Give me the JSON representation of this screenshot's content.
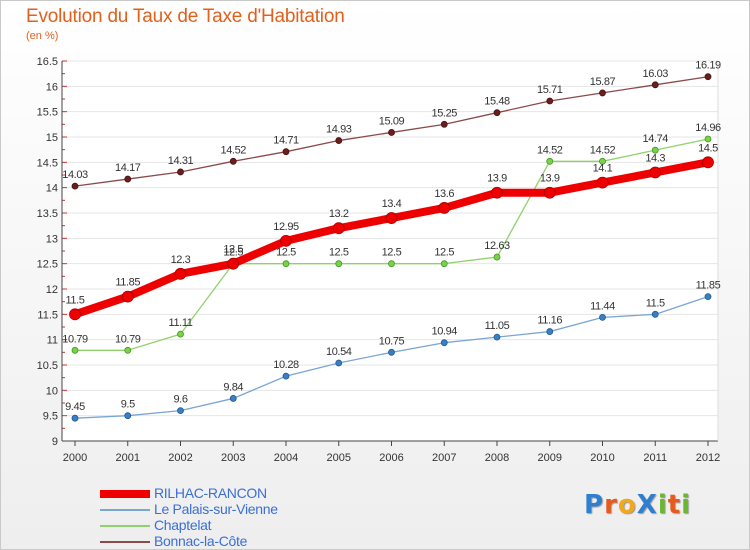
{
  "title": "Evolution du Taux de Taxe d'Habitation",
  "subtitle": "(en %)",
  "logo": {
    "text": "ProXiti",
    "letters": [
      {
        "ch": "P",
        "color": "#2f7fd1"
      },
      {
        "ch": "r",
        "color": "#e85a1c"
      },
      {
        "ch": "o",
        "color": "#f0a81c"
      },
      {
        "ch": "X",
        "color": "#2f7fd1"
      },
      {
        "ch": "i",
        "color": "#6ab82e"
      },
      {
        "ch": "t",
        "color": "#e85a1c"
      },
      {
        "ch": "i",
        "color": "#6ab82e"
      }
    ]
  },
  "chart_data": {
    "type": "line",
    "title": "Evolution du Taux de Taxe d'Habitation",
    "subtitle": "(en %)",
    "xlabel": "",
    "ylabel": "",
    "x": [
      "2000",
      "2001",
      "2002",
      "2003",
      "2004",
      "2005",
      "2006",
      "2007",
      "2008",
      "2009",
      "2010",
      "2011",
      "2012"
    ],
    "ylim": [
      9,
      16.5
    ],
    "yticks": [
      "9",
      "9.5",
      "10",
      "10.5",
      "11",
      "11.5",
      "12",
      "12.5",
      "13",
      "13.5",
      "14",
      "14.5",
      "15",
      "15.5",
      "16",
      "16.5"
    ],
    "grid": "horizontal",
    "legend_position": "bottom-left",
    "series": [
      {
        "name": "RILHAC-RANCON",
        "color": "#ee0000",
        "values": [
          11.5,
          11.85,
          12.3,
          12.5,
          12.95,
          13.2,
          13.4,
          13.6,
          13.9,
          13.9,
          14.1,
          14.3,
          14.5
        ],
        "labels": [
          "11.5",
          "11.85",
          "12.3",
          "12.5",
          "12.95",
          "13.2",
          "13.4",
          "13.6",
          "13.9",
          "13.9",
          "14.1",
          "14.3",
          "14.5"
        ]
      },
      {
        "name": "Le Palais-sur-Vienne",
        "color": "#7aa6d3",
        "values": [
          9.45,
          9.5,
          9.6,
          9.84,
          10.28,
          10.54,
          10.75,
          10.94,
          11.05,
          11.16,
          11.44,
          11.5,
          11.85
        ],
        "labels": [
          "9.45",
          "9.5",
          "9.6",
          "9.84",
          "10.28",
          "10.54",
          "10.75",
          "10.94",
          "11.05",
          "11.16",
          "11.44",
          "11.5",
          "11.85"
        ]
      },
      {
        "name": "Chaptelat",
        "color": "#90d26a",
        "values": [
          10.79,
          10.79,
          11.11,
          12.5,
          12.5,
          12.5,
          12.5,
          12.5,
          12.63,
          14.52,
          14.52,
          14.74,
          14.96
        ],
        "labels": [
          "10.79",
          "10.79",
          "11.11",
          "12.5",
          "12.5",
          "12.5",
          "12.5",
          "12.5",
          "12.63",
          "14.52",
          "14.52",
          "14.74",
          "14.96"
        ]
      },
      {
        "name": "Bonnac-la-Côte",
        "color": "#8a4a4a",
        "values": [
          14.03,
          14.17,
          14.31,
          14.52,
          14.71,
          14.93,
          15.09,
          15.25,
          15.48,
          15.71,
          15.87,
          16.03,
          16.19
        ],
        "labels": [
          "14.03",
          "14.17",
          "14.31",
          "14.52",
          "14.71",
          "14.93",
          "15.09",
          "15.25",
          "15.48",
          "15.71",
          "15.87",
          "16.03",
          "16.19"
        ]
      }
    ]
  }
}
